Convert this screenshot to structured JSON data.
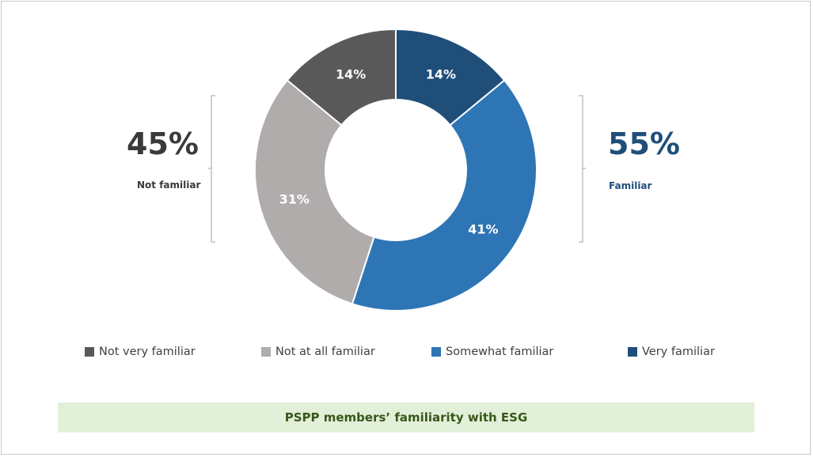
{
  "chart_data": {
    "type": "pie",
    "title": "PSPP members’ familiarity with ESG",
    "slices": [
      {
        "name": "Very familiar",
        "value": 14,
        "label": "14%",
        "color": "#1f4e79"
      },
      {
        "name": "Somewhat familiar",
        "value": 41,
        "label": "41%",
        "color": "#2e75b6"
      },
      {
        "name": "Not at all familiar",
        "value": 31,
        "label": "31%",
        "color": "#b0acab"
      },
      {
        "name": "Not very familiar",
        "value": 14,
        "label": "14%",
        "color": "#595959"
      }
    ],
    "legend": [
      "Not very familiar",
      "Not at all familiar",
      "Somewhat familiar",
      "Very familiar"
    ],
    "legend_placement": "bottom",
    "groups": {
      "not_familiar": {
        "value": "45%",
        "label": "Not familiar"
      },
      "familiar": {
        "value": "55%",
        "label": "Familiar"
      }
    }
  },
  "legend_colors": {
    "Not very familiar": "#595959",
    "Not at all familiar": "#b0acab",
    "Somewhat familiar": "#2e75b6",
    "Very familiar": "#1f4e79"
  }
}
